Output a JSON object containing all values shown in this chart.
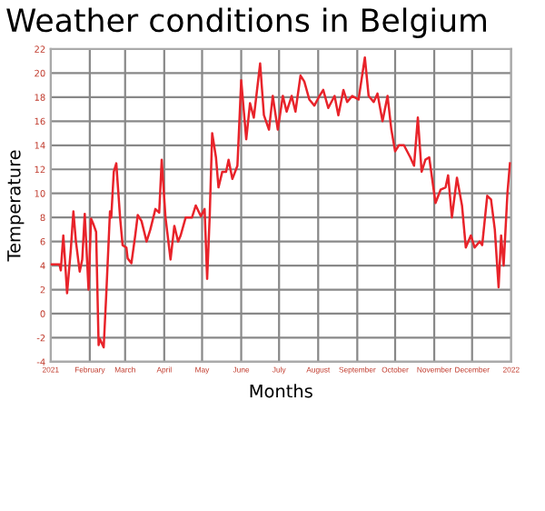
{
  "chart_data": {
    "type": "line",
    "title": "Weather conditions in Belgium",
    "xlabel": "Months",
    "ylabel": "Temperature",
    "xlim": [
      "2021-01-01",
      "2022-01-01"
    ],
    "ylim": [
      -4,
      22
    ],
    "yticks": [
      -4,
      -2,
      0,
      2,
      4,
      6,
      8,
      10,
      12,
      14,
      16,
      18,
      20,
      22
    ],
    "xticks": [
      {
        "value": "2021-01-01",
        "label": "2021"
      },
      {
        "value": "2021-02-01",
        "label": "February"
      },
      {
        "value": "2021-03-01",
        "label": "March"
      },
      {
        "value": "2021-04-01",
        "label": "April"
      },
      {
        "value": "2021-05-01",
        "label": "May"
      },
      {
        "value": "2021-06-01",
        "label": "June"
      },
      {
        "value": "2021-07-01",
        "label": "July"
      },
      {
        "value": "2021-08-01",
        "label": "August"
      },
      {
        "value": "2021-09-01",
        "label": "September"
      },
      {
        "value": "2021-10-01",
        "label": "October"
      },
      {
        "value": "2021-11-01",
        "label": "November"
      },
      {
        "value": "2021-12-01",
        "label": "December"
      },
      {
        "value": "2022-01-01",
        "label": "2022"
      }
    ],
    "grid": true,
    "legend": false,
    "marker": "none",
    "line_style": "solid",
    "x": [
      "2021-01-01",
      "2021-01-08",
      "2021-01-09",
      "2021-01-11",
      "2021-01-12",
      "2021-01-14",
      "2021-01-17",
      "2021-01-19",
      "2021-01-21",
      "2021-01-24",
      "2021-01-26",
      "2021-01-28",
      "2021-01-31",
      "2021-02-02",
      "2021-02-04",
      "2021-02-06",
      "2021-02-08",
      "2021-02-09",
      "2021-02-12",
      "2021-02-14",
      "2021-02-17",
      "2021-02-18",
      "2021-02-20",
      "2021-02-22",
      "2021-02-25",
      "2021-02-27",
      "2021-03-02",
      "2021-03-03",
      "2021-03-06",
      "2021-03-09",
      "2021-03-11",
      "2021-03-14",
      "2021-03-18",
      "2021-03-21",
      "2021-03-25",
      "2021-03-28",
      "2021-03-30",
      "2021-04-02",
      "2021-04-06",
      "2021-04-09",
      "2021-04-12",
      "2021-04-14",
      "2021-04-18",
      "2021-04-23",
      "2021-04-26",
      "2021-04-30",
      "2021-05-03",
      "2021-05-05",
      "2021-05-07",
      "2021-05-09",
      "2021-05-12",
      "2021-05-14",
      "2021-05-17",
      "2021-05-20",
      "2021-05-22",
      "2021-05-25",
      "2021-05-29",
      "2021-06-01",
      "2021-06-05",
      "2021-06-08",
      "2021-06-11",
      "2021-06-14",
      "2021-06-16",
      "2021-06-19",
      "2021-06-23",
      "2021-06-26",
      "2021-06-30",
      "2021-07-04",
      "2021-07-07",
      "2021-07-11",
      "2021-07-14",
      "2021-07-18",
      "2021-07-21",
      "2021-07-25",
      "2021-07-29",
      "2021-08-02",
      "2021-08-05",
      "2021-08-09",
      "2021-08-14",
      "2021-08-17",
      "2021-08-21",
      "2021-08-24",
      "2021-08-28",
      "2021-09-02",
      "2021-09-07",
      "2021-09-10",
      "2021-09-14",
      "2021-09-17",
      "2021-09-21",
      "2021-09-25",
      "2021-09-28",
      "2021-10-01",
      "2021-10-04",
      "2021-10-08",
      "2021-10-13",
      "2021-10-16",
      "2021-10-19",
      "2021-10-22",
      "2021-10-25",
      "2021-10-28",
      "2021-11-02",
      "2021-11-06",
      "2021-11-10",
      "2021-11-12",
      "2021-11-15",
      "2021-11-19",
      "2021-11-23",
      "2021-11-26",
      "2021-11-30",
      "2021-12-03",
      "2021-12-07",
      "2021-12-09",
      "2021-12-13",
      "2021-12-16",
      "2021-12-19",
      "2021-12-22",
      "2021-12-24",
      "2021-12-26",
      "2021-12-29",
      "2021-12-31"
    ],
    "series": [
      {
        "color": "#e8232a",
        "values": [
          4.1,
          4.1,
          3.6,
          6.5,
          5,
          1.7,
          5.4,
          8.5,
          6,
          3.5,
          4.5,
          8.3,
          2,
          7.9,
          7.4,
          6.8,
          -2.6,
          -2.1,
          -2.8,
          1.5,
          8.5,
          8,
          11.8,
          12.5,
          8,
          5.7,
          5.5,
          4.6,
          4.2,
          6.5,
          8.2,
          7.7,
          6,
          7,
          8.7,
          8.4,
          12.8,
          8,
          4.5,
          7.3,
          6,
          6.5,
          8,
          8,
          9,
          8.1,
          8.7,
          2.9,
          8,
          15,
          13,
          10.5,
          11.8,
          11.8,
          12.8,
          11.2,
          12.3,
          19.4,
          14.5,
          17.5,
          16.3,
          19,
          20.8,
          16.5,
          15.3,
          18.1,
          15.3,
          18.1,
          16.8,
          18.1,
          16.8,
          19.8,
          19.3,
          17.8,
          17.3,
          18.1,
          18.6,
          17.1,
          18.1,
          16.5,
          18.6,
          17.6,
          18.1,
          17.8,
          21.3,
          18.1,
          17.6,
          18.3,
          16,
          18.1,
          15.3,
          13.5,
          14,
          14,
          13,
          12.3,
          16.3,
          11.8,
          12.8,
          13,
          9.2,
          10.3,
          10.5,
          11.5,
          8,
          11.3,
          9,
          5.5,
          6.5,
          5.5,
          6,
          5.7,
          9.8,
          9.5,
          7,
          2.2,
          6.5,
          4,
          10,
          12.5
        ]
      }
    ]
  }
}
